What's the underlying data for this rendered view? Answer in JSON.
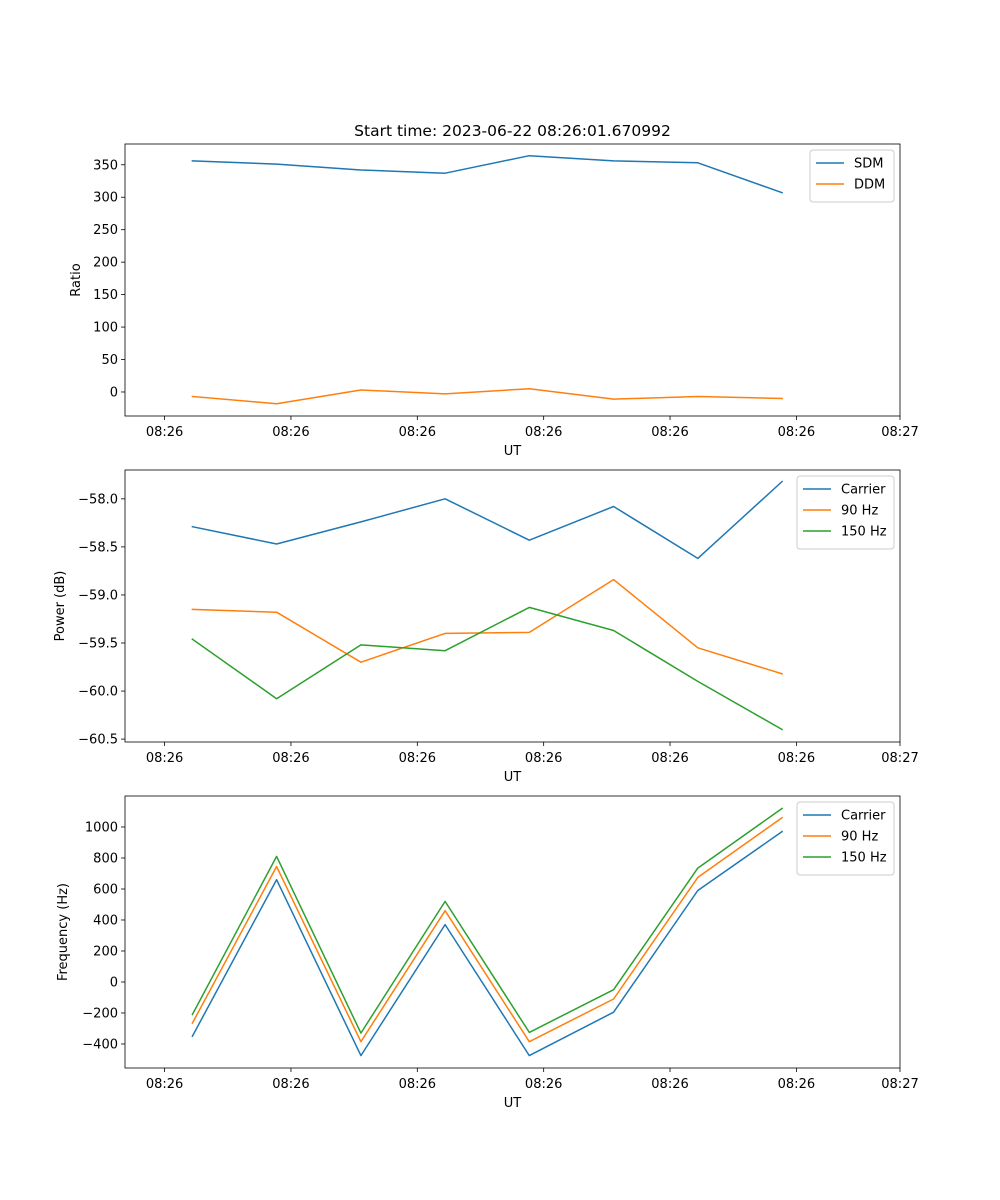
{
  "figure": {
    "title": "Start time: 2023-06-22 08:26:01.670992"
  },
  "chart_data": [
    {
      "type": "line",
      "title": "Start time: 2023-06-22 08:26:01.670992",
      "xlabel": "UT",
      "ylabel": "Ratio",
      "x": [
        1,
        2,
        3,
        4,
        5,
        6,
        7,
        8
      ],
      "xlim": [
        0.2,
        9.4
      ],
      "xticks": [
        0.67,
        2.17,
        3.67,
        5.17,
        6.67,
        8.17,
        9.4
      ],
      "xtick_labels": [
        "08:26",
        "08:26",
        "08:26",
        "08:26",
        "08:26",
        "08:26",
        "08:27"
      ],
      "ylim": [
        -37,
        382
      ],
      "yticks": [
        0,
        50,
        100,
        150,
        200,
        250,
        300,
        350
      ],
      "ytick_labels": [
        "0",
        "50",
        "100",
        "150",
        "200",
        "250",
        "300",
        "350"
      ],
      "series": [
        {
          "name": "SDM",
          "color": "#1f77b4",
          "values": [
            356,
            351,
            342,
            337,
            364,
            356,
            353,
            307
          ]
        },
        {
          "name": "DDM",
          "color": "#ff7f0e",
          "values": [
            -7,
            -18,
            3,
            -3,
            5,
            -11,
            -7,
            -10
          ]
        }
      ],
      "legend": "top-right",
      "grid": false
    },
    {
      "type": "line",
      "xlabel": "UT",
      "ylabel": "Power (dB)",
      "x": [
        1,
        2,
        3,
        4,
        5,
        6,
        7,
        8
      ],
      "xlim": [
        0.2,
        9.4
      ],
      "xticks": [
        0.67,
        2.17,
        3.67,
        5.17,
        6.67,
        8.17,
        9.4
      ],
      "xtick_labels": [
        "08:26",
        "08:26",
        "08:26",
        "08:26",
        "08:26",
        "08:26",
        "08:27"
      ],
      "ylim": [
        -60.53,
        -57.7
      ],
      "yticks": [
        -60.5,
        -60.0,
        -59.5,
        -59.0,
        -58.5,
        -58.0
      ],
      "ytick_labels": [
        "−60.5",
        "−60.0",
        "−59.5",
        "−59.0",
        "−58.5",
        "−58.0"
      ],
      "series": [
        {
          "name": "Carrier",
          "color": "#1f77b4",
          "values": [
            -58.29,
            -58.47,
            -58.24,
            -58.0,
            -58.43,
            -58.08,
            -58.62,
            -57.82
          ]
        },
        {
          "name": "90 Hz",
          "color": "#ff7f0e",
          "values": [
            -59.15,
            -59.18,
            -59.7,
            -59.4,
            -59.39,
            -58.84,
            -59.55,
            -59.82
          ]
        },
        {
          "name": "150 Hz",
          "color": "#2ca02c",
          "values": [
            -59.46,
            -60.08,
            -59.52,
            -59.58,
            -59.13,
            -59.37,
            -59.9,
            -60.4
          ]
        }
      ],
      "legend": "top-right",
      "grid": false
    },
    {
      "type": "line",
      "xlabel": "UT",
      "ylabel": "Frequency (Hz)",
      "x": [
        1,
        2,
        3,
        4,
        5,
        6,
        7,
        8
      ],
      "xlim": [
        0.2,
        9.4
      ],
      "xticks": [
        0.67,
        2.17,
        3.67,
        5.17,
        6.67,
        8.17,
        9.4
      ],
      "xtick_labels": [
        "08:26",
        "08:26",
        "08:26",
        "08:26",
        "08:26",
        "08:26",
        "08:27"
      ],
      "ylim": [
        -555,
        1200
      ],
      "yticks": [
        -400,
        -200,
        0,
        200,
        400,
        600,
        800,
        1000
      ],
      "ytick_labels": [
        "−400",
        "−200",
        "0",
        "200",
        "400",
        "600",
        "800",
        "1000"
      ],
      "series": [
        {
          "name": "Carrier",
          "color": "#1f77b4",
          "values": [
            -350,
            660,
            -475,
            370,
            -475,
            -195,
            590,
            970
          ]
        },
        {
          "name": "90 Hz",
          "color": "#ff7f0e",
          "values": [
            -265,
            745,
            -385,
            460,
            -385,
            -110,
            675,
            1060
          ]
        },
        {
          "name": "150 Hz",
          "color": "#2ca02c",
          "values": [
            -210,
            810,
            -330,
            520,
            -325,
            -50,
            735,
            1120
          ]
        }
      ],
      "legend": "top-right",
      "grid": false
    }
  ]
}
